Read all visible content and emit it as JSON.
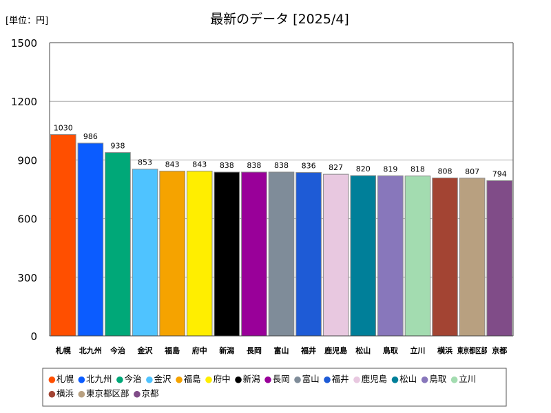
{
  "chart_data": {
    "type": "bar",
    "title": "最新のデータ [2025/4]",
    "unit_label": "[単位：円]",
    "categories": [
      "札幌",
      "北九州",
      "今治",
      "金沢",
      "福島",
      "府中",
      "新潟",
      "長岡",
      "富山",
      "福井",
      "鹿児島",
      "松山",
      "鳥取",
      "立川",
      "横浜",
      "東京都区部",
      "京都"
    ],
    "category_labels": [
      "札幌",
      "北九州",
      "今治",
      "金沢",
      "福島",
      "府中",
      "新潟",
      "長岡",
      "富山",
      "福井",
      "鹿児島",
      "松山",
      "鳥取",
      "立川",
      "横浜",
      "東京都区部",
      "京都"
    ],
    "values": [
      1030,
      986,
      938,
      853,
      843,
      843,
      838,
      838,
      838,
      836,
      827,
      820,
      819,
      818,
      808,
      807,
      794
    ],
    "colors": [
      "#ff4f00",
      "#0b5cff",
      "#00a878",
      "#4fc3ff",
      "#f5a300",
      "#ffee00",
      "#000000",
      "#990099",
      "#7f8c99",
      "#1e5bd6",
      "#e8c8e0",
      "#007f99",
      "#8877bb",
      "#a3dcb0",
      "#a34433",
      "#b8a080",
      "#804c88"
    ],
    "ylim": [
      0,
      1500
    ],
    "yticks": [
      0,
      300,
      600,
      900,
      1200,
      1500
    ],
    "ytick_labels": [
      "0",
      "300",
      "600",
      "900",
      "1200",
      "1500"
    ],
    "grid": true,
    "legend_position": "bottom",
    "legend_marker": "●"
  }
}
